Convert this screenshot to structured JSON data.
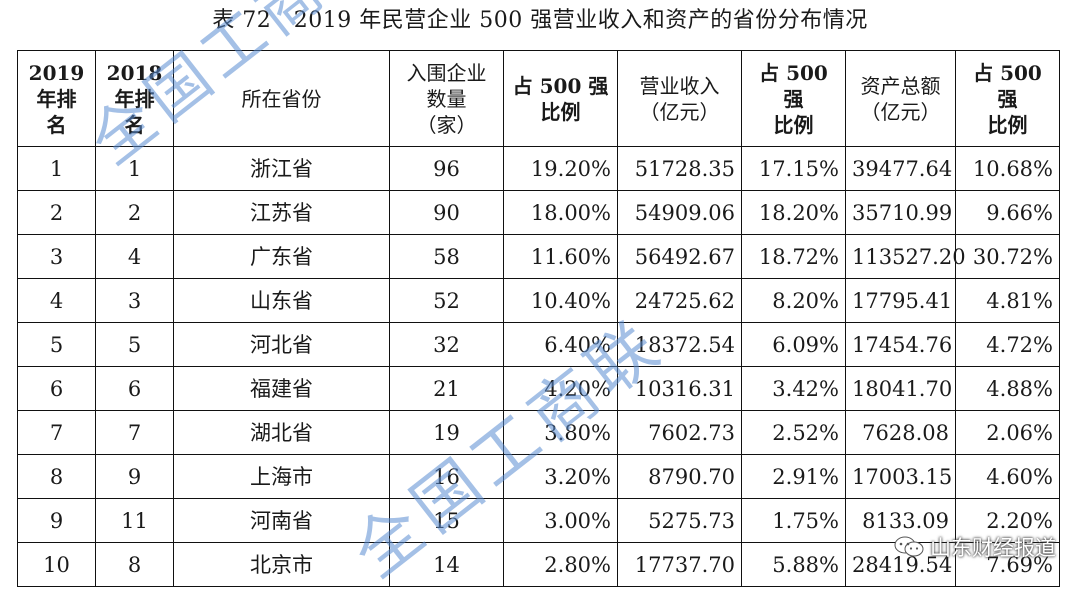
{
  "caption": "表 72　2019 年民营企业 500 强营业收入和资产的省份分布情况",
  "table": {
    "headers": [
      "2019\n年排\n名",
      "2018\n年排\n名",
      "所在省份",
      "入围企业\n数量\n（家）",
      "占 500 强\n比例",
      "营业收入\n（亿元）",
      "占 500 强\n比例",
      "资产总额\n（亿元）",
      "占 500 强\n比例"
    ],
    "rows": [
      [
        "1",
        "1",
        "浙江省",
        "96",
        "19.20%",
        "51728.35",
        "17.15%",
        "39477.64",
        "10.68%"
      ],
      [
        "2",
        "2",
        "江苏省",
        "90",
        "18.00%",
        "54909.06",
        "18.20%",
        "35710.99",
        "9.66%"
      ],
      [
        "3",
        "4",
        "广东省",
        "58",
        "11.60%",
        "56492.67",
        "18.72%",
        "113527.20",
        "30.72%"
      ],
      [
        "4",
        "3",
        "山东省",
        "52",
        "10.40%",
        "24725.62",
        "8.20%",
        "17795.41",
        "4.81%"
      ],
      [
        "5",
        "5",
        "河北省",
        "32",
        "6.40%",
        "18372.54",
        "6.09%",
        "17454.76",
        "4.72%"
      ],
      [
        "6",
        "6",
        "福建省",
        "21",
        "4.20%",
        "10316.31",
        "3.42%",
        "18041.70",
        "4.88%"
      ],
      [
        "7",
        "7",
        "湖北省",
        "19",
        "3.80%",
        "7602.73",
        "2.52%",
        "7628.08",
        "2.06%"
      ],
      [
        "8",
        "9",
        "上海市",
        "16",
        "3.20%",
        "8790.70",
        "2.91%",
        "17003.15",
        "4.60%"
      ],
      [
        "9",
        "11",
        "河南省",
        "15",
        "3.00%",
        "5275.73",
        "1.75%",
        "8133.09",
        "2.20%"
      ],
      [
        "10",
        "8",
        "北京市",
        "14",
        "2.80%",
        "17737.70",
        "5.88%",
        "28419.54",
        "7.69%"
      ]
    ]
  },
  "watermark": {
    "text_1": "全国工商联",
    "text_2": "全国工商联",
    "color": "#5a8cd2"
  },
  "stamp": {
    "text": "山东财经报道",
    "icon": "wechat-icon"
  }
}
